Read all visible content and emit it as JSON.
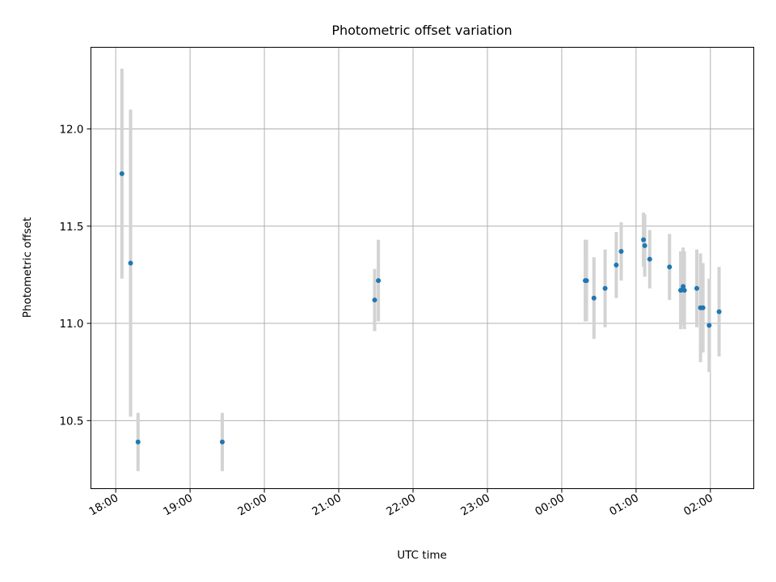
{
  "chart_data": {
    "type": "scatter",
    "title": "Photometric offset variation",
    "xlabel": "UTC time",
    "ylabel": "Photometric offset",
    "x_axis": {
      "kind": "time",
      "start": "17:40",
      "end": "02:35",
      "ticks": [
        "18:00",
        "19:00",
        "20:00",
        "21:00",
        "22:00",
        "23:00",
        "00:00",
        "01:00",
        "02:00"
      ]
    },
    "y_axis": {
      "ylim": [
        10.15,
        12.42
      ],
      "ticks": [
        "10.5",
        "11.0",
        "11.5",
        "12.0"
      ]
    },
    "grid": true,
    "colors": {
      "points": "#1f77b4",
      "errorbars": "#d3d3d3"
    },
    "points": [
      {
        "t": "18:05",
        "y": 11.77,
        "err": 0.54
      },
      {
        "t": "18:12",
        "y": 11.31,
        "err": 0.79
      },
      {
        "t": "18:18",
        "y": 10.39,
        "err": 0.15
      },
      {
        "t": "19:26",
        "y": 10.39,
        "err": 0.15
      },
      {
        "t": "21:29",
        "y": 11.12,
        "err": 0.16
      },
      {
        "t": "21:32",
        "y": 11.22,
        "err": 0.21
      },
      {
        "t": "00:19",
        "y": 11.22,
        "err": 0.21
      },
      {
        "t": "00:20",
        "y": 11.22,
        "err": 0.21
      },
      {
        "t": "00:26",
        "y": 11.13,
        "err": 0.21
      },
      {
        "t": "00:35",
        "y": 11.18,
        "err": 0.2
      },
      {
        "t": "00:44",
        "y": 11.3,
        "err": 0.17
      },
      {
        "t": "00:48",
        "y": 11.37,
        "err": 0.15
      },
      {
        "t": "01:06",
        "y": 11.43,
        "err": 0.14
      },
      {
        "t": "01:07",
        "y": 11.4,
        "err": 0.16
      },
      {
        "t": "01:11",
        "y": 11.33,
        "err": 0.15
      },
      {
        "t": "01:27",
        "y": 11.29,
        "err": 0.17
      },
      {
        "t": "01:36",
        "y": 11.17,
        "err": 0.2
      },
      {
        "t": "01:38",
        "y": 11.19,
        "err": 0.2
      },
      {
        "t": "01:39",
        "y": 11.17,
        "err": 0.2
      },
      {
        "t": "01:49",
        "y": 11.18,
        "err": 0.2
      },
      {
        "t": "01:52",
        "y": 11.08,
        "err": 0.28
      },
      {
        "t": "01:54",
        "y": 11.08,
        "err": 0.23
      },
      {
        "t": "01:59",
        "y": 10.99,
        "err": 0.24
      },
      {
        "t": "02:07",
        "y": 11.06,
        "err": 0.23
      }
    ]
  }
}
